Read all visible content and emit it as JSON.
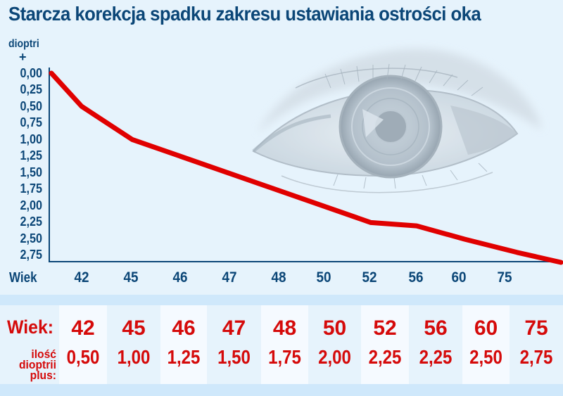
{
  "title": "Starcza korekcja spadku zakresu ustawiania ostrości oka",
  "colors": {
    "background": "#e6f3fc",
    "axis_text": "#0b4677",
    "line": "#e00000",
    "table_text": "#d50a0a",
    "table_band": "#cfe8fb",
    "table_cell_light": "#f5faff"
  },
  "decoration": {
    "eye_illustration": "pencil drawing of a human eye, light grey-blue, upper right background"
  },
  "chart": {
    "unit_label": "dioptri",
    "plus_label": "+",
    "y_ticks": [
      "0,00",
      "0,25",
      "0,50",
      "0,75",
      "1,00",
      "1,25",
      "1,50",
      "1,75",
      "2,00",
      "2,25",
      "2,50",
      "2,75"
    ],
    "x_axis_title": "Wiek",
    "x_ticks": [
      "42",
      "45",
      "46",
      "47",
      "48",
      "50",
      "52",
      "56",
      "60",
      "75"
    ]
  },
  "table": {
    "age_label": "Wiek:",
    "diopter_label_line1": "ilość",
    "diopter_label_line2": "dioptrii",
    "diopter_label_line3": "plus:",
    "columns": [
      {
        "age": "42",
        "diopters": "0,50"
      },
      {
        "age": "45",
        "diopters": "1,00"
      },
      {
        "age": "46",
        "diopters": "1,25"
      },
      {
        "age": "47",
        "diopters": "1,50"
      },
      {
        "age": "48",
        "diopters": "1,75"
      },
      {
        "age": "50",
        "diopters": "2,00"
      },
      {
        "age": "52",
        "diopters": "2,25"
      },
      {
        "age": "56",
        "diopters": "2,25"
      },
      {
        "age": "60",
        "diopters": "2,50"
      },
      {
        "age": "75",
        "diopters": "2,75"
      }
    ]
  },
  "chart_data": {
    "type": "line",
    "title": "Starcza korekcja spadku zakresu ustawiania ostrości oka",
    "xlabel": "Wiek",
    "ylabel": "dioptri +",
    "categories": [
      "42",
      "45",
      "46",
      "47",
      "48",
      "50",
      "52",
      "56",
      "60",
      "75"
    ],
    "series": [
      {
        "name": "ilość dioptrii plus",
        "values": [
          0.5,
          1.0,
          1.25,
          1.5,
          1.75,
          2.0,
          2.25,
          2.25,
          2.5,
          2.75
        ]
      }
    ],
    "plotted_line_points": [
      {
        "x": "start",
        "y": 0.0
      },
      {
        "x": "42",
        "y": 0.5
      },
      {
        "x": "45",
        "y": 1.0
      },
      {
        "x": "52",
        "y": 2.25
      },
      {
        "x": "56",
        "y": 2.3
      },
      {
        "x": "60",
        "y": 2.5
      },
      {
        "x": "75",
        "y": 2.7
      },
      {
        "x": "end",
        "y": 2.85
      }
    ],
    "ylim": [
      0,
      2.85
    ],
    "y_axis_inverted": true,
    "y_tick_labels": [
      "0,00",
      "0,25",
      "0,50",
      "0,75",
      "1,00",
      "1,25",
      "1,50",
      "1,75",
      "2,00",
      "2,25",
      "2,50",
      "2,75"
    ],
    "grid": false,
    "legend": "none; values repeated in table below chart"
  }
}
